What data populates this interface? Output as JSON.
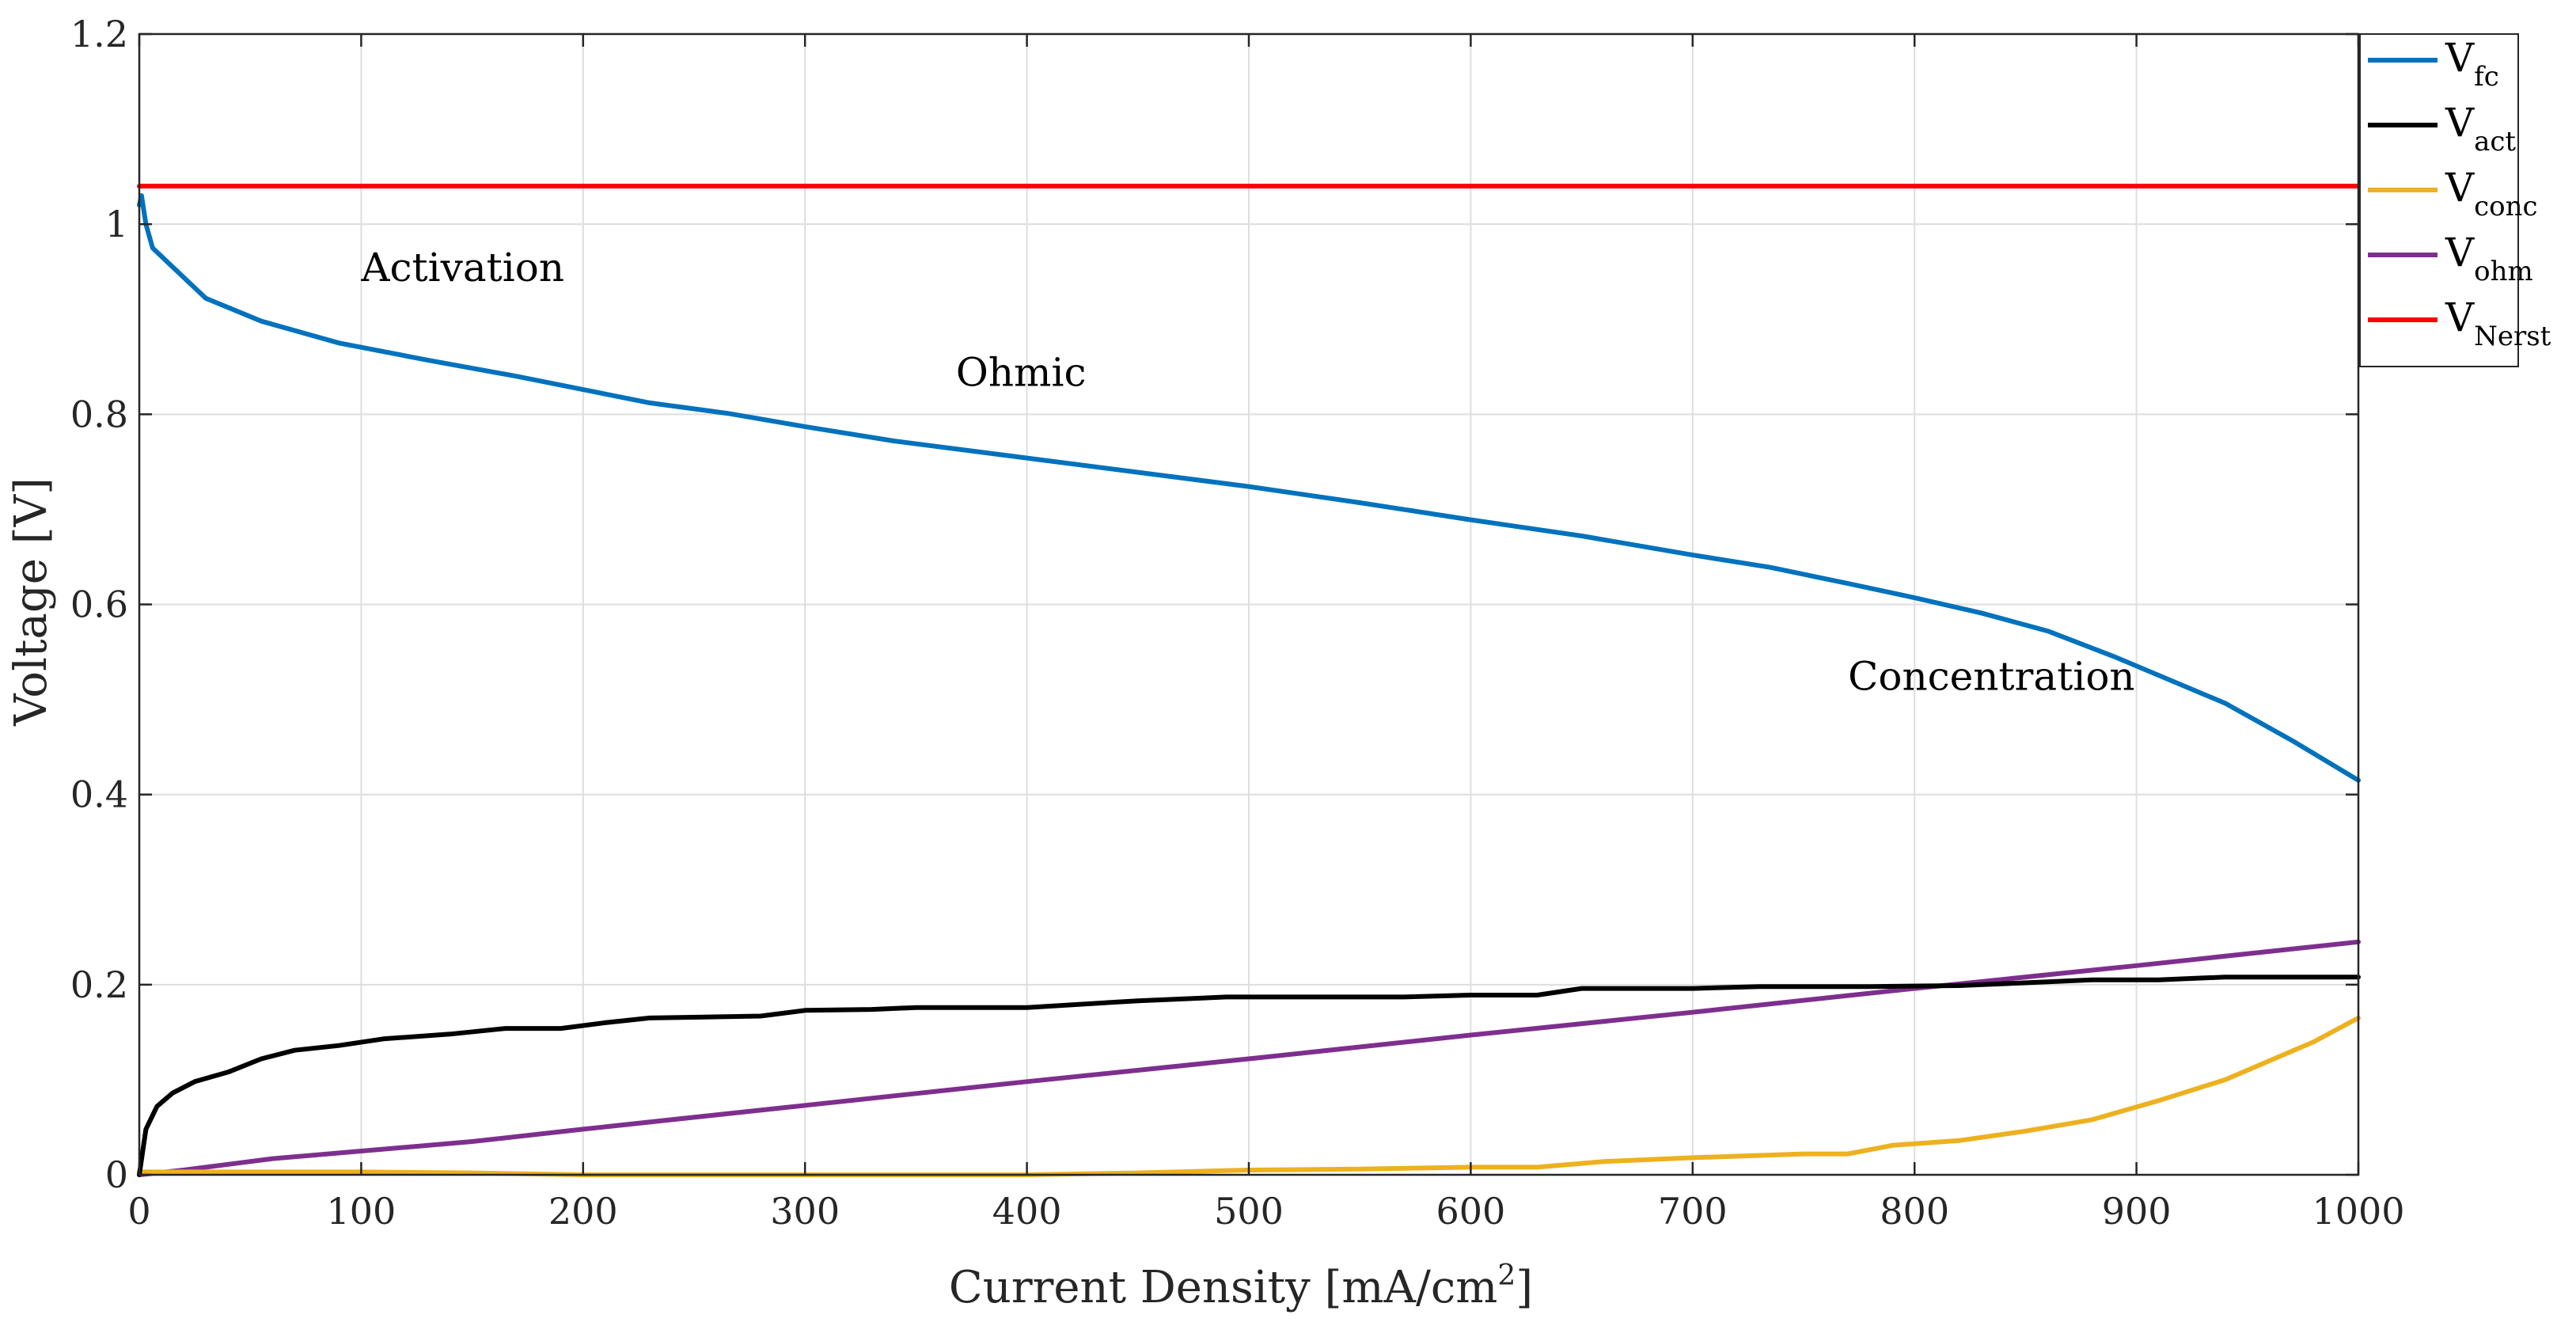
{
  "chart_data": {
    "type": "line",
    "title": "",
    "xlabel_main": "Current Density [mA/cm",
    "xlabel_sup": "2",
    "xlabel_end": "]",
    "ylabel": "Voltage [V]",
    "xlim": [
      0,
      1000
    ],
    "ylim": [
      0,
      1.2
    ],
    "grid": true,
    "legend_position": "top-right (outside plot area)",
    "x_ticks": [
      0,
      100,
      200,
      300,
      400,
      500,
      600,
      700,
      800,
      900,
      1000
    ],
    "x_tick_labels": [
      "0",
      "100",
      "200",
      "300",
      "400",
      "500",
      "600",
      "700",
      "800",
      "900",
      "1000"
    ],
    "y_ticks": [
      0,
      0.2,
      0.4,
      0.6,
      0.8,
      1.0,
      1.2
    ],
    "y_tick_labels": [
      "0",
      "0.2",
      "0.4",
      "0.6",
      "0.8",
      "1",
      "1.2"
    ],
    "annotations": [
      {
        "text": "Activation",
        "x": 100,
        "y": 0.94
      },
      {
        "text": "Ohmic",
        "x": 368,
        "y": 0.83
      },
      {
        "text": "Concentration",
        "x": 770,
        "y": 0.51
      }
    ],
    "series": [
      {
        "name": "V_fc",
        "label_main": "V",
        "label_sub": "fc",
        "color": "#0072BD",
        "x": [
          0,
          1,
          3,
          6,
          15,
          30,
          55,
          90,
          130,
          170,
          230,
          265,
          300,
          340,
          400,
          450,
          500,
          550,
          600,
          650,
          700,
          735,
          770,
          800,
          830,
          860,
          890,
          940,
          970,
          1000
        ],
        "y": [
          1.02,
          1.03,
          1.0,
          0.975,
          0.955,
          0.922,
          0.898,
          0.875,
          0.857,
          0.84,
          0.812,
          0.801,
          0.787,
          0.772,
          0.754,
          0.739,
          0.724,
          0.707,
          0.689,
          0.672,
          0.652,
          0.639,
          0.622,
          0.607,
          0.591,
          0.572,
          0.545,
          0.496,
          0.457,
          0.415
        ]
      },
      {
        "name": "V_act",
        "label_main": "V",
        "label_sub": "act",
        "color": "#000000",
        "x": [
          0,
          3,
          8,
          15,
          25,
          40,
          55,
          70,
          90,
          110,
          140,
          165,
          190,
          210,
          230,
          280,
          300,
          330,
          350,
          400,
          450,
          490,
          530,
          570,
          600,
          630,
          650,
          700,
          730,
          780,
          820,
          860,
          880,
          910,
          940,
          1000
        ],
        "y": [
          0.0,
          0.048,
          0.072,
          0.086,
          0.098,
          0.108,
          0.122,
          0.131,
          0.136,
          0.143,
          0.148,
          0.154,
          0.154,
          0.16,
          0.165,
          0.167,
          0.173,
          0.174,
          0.176,
          0.176,
          0.183,
          0.187,
          0.187,
          0.187,
          0.189,
          0.189,
          0.196,
          0.196,
          0.198,
          0.198,
          0.199,
          0.203,
          0.205,
          0.205,
          0.208,
          0.208
        ]
      },
      {
        "name": "V_conc",
        "label_main": "V",
        "label_sub": "conc",
        "color": "#EDB120",
        "x": [
          0,
          50,
          100,
          150,
          200,
          250,
          300,
          350,
          400,
          450,
          500,
          550,
          600,
          630,
          660,
          700,
          750,
          770,
          790,
          820,
          850,
          880,
          910,
          940,
          960,
          980,
          1000
        ],
        "y": [
          0.003,
          0.003,
          0.003,
          0.002,
          0.0,
          0.0,
          0.0,
          0.0,
          0.0,
          0.002,
          0.005,
          0.006,
          0.008,
          0.008,
          0.014,
          0.018,
          0.022,
          0.022,
          0.031,
          0.036,
          0.046,
          0.058,
          0.078,
          0.1,
          0.12,
          0.14,
          0.165
        ]
      },
      {
        "name": "V_ohm",
        "label_main": "V",
        "label_sub": "ohm",
        "color": "#7E2F8E",
        "x": [
          0,
          20,
          40,
          60,
          100,
          150,
          200,
          300,
          400,
          500,
          600,
          700,
          800,
          900,
          1000
        ],
        "y": [
          0.0,
          0.005,
          0.011,
          0.017,
          0.025,
          0.035,
          0.048,
          0.073,
          0.098,
          0.122,
          0.147,
          0.171,
          0.196,
          0.22,
          0.245
        ]
      },
      {
        "name": "V_Nerst",
        "label_main": "V",
        "label_sub": "Nerst",
        "color": "#FF0000",
        "x": [
          0,
          1000
        ],
        "y": [
          1.04,
          1.04
        ]
      }
    ]
  }
}
